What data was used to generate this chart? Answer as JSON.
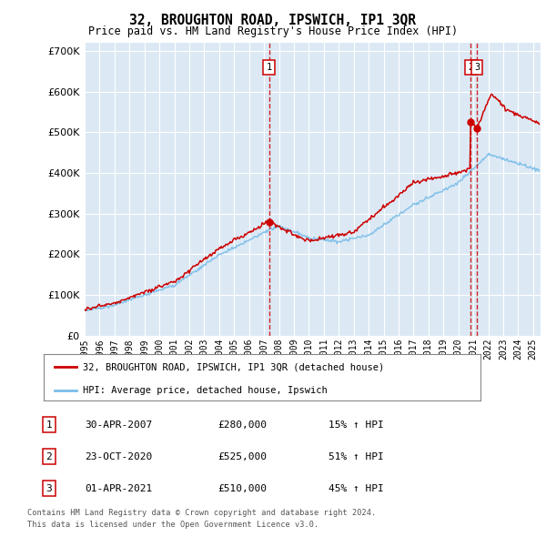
{
  "title": "32, BROUGHTON ROAD, IPSWICH, IP1 3QR",
  "subtitle": "Price paid vs. HM Land Registry's House Price Index (HPI)",
  "background_color": "#ffffff",
  "plot_bg_color": "#dce9f5",
  "hpi_color": "#7abde8",
  "price_color": "#cc0000",
  "vline_color": "#cc0000",
  "transactions": [
    {
      "num": 1,
      "date_label": "30-APR-2007",
      "date_x": 2007.33,
      "price": 280000,
      "pct": "15%",
      "dir": "↑"
    },
    {
      "num": 2,
      "date_label": "23-OCT-2020",
      "date_x": 2020.83,
      "price": 525000,
      "pct": "51%",
      "dir": "↑"
    },
    {
      "num": 3,
      "date_label": "01-APR-2021",
      "date_x": 2021.25,
      "price": 510000,
      "pct": "45%",
      "dir": "↑"
    }
  ],
  "legend_label_red": "32, BROUGHTON ROAD, IPSWICH, IP1 3QR (detached house)",
  "legend_label_blue": "HPI: Average price, detached house, Ipswich",
  "footer1": "Contains HM Land Registry data © Crown copyright and database right 2024.",
  "footer2": "This data is licensed under the Open Government Licence v3.0.",
  "ylim": [
    0,
    720000
  ],
  "xlim": [
    1995.0,
    2025.5
  ],
  "yticks": [
    0,
    100000,
    200000,
    300000,
    400000,
    500000,
    600000,
    700000
  ],
  "trans_prices": [
    280000,
    525000,
    510000
  ],
  "table_rows": [
    [
      "1",
      "30-APR-2007",
      "£280,000",
      "15% ↑ HPI"
    ],
    [
      "2",
      "23-OCT-2020",
      "£525,000",
      "51% ↑ HPI"
    ],
    [
      "3",
      "01-APR-2021",
      "£510,000",
      "45% ↑ HPI"
    ]
  ]
}
